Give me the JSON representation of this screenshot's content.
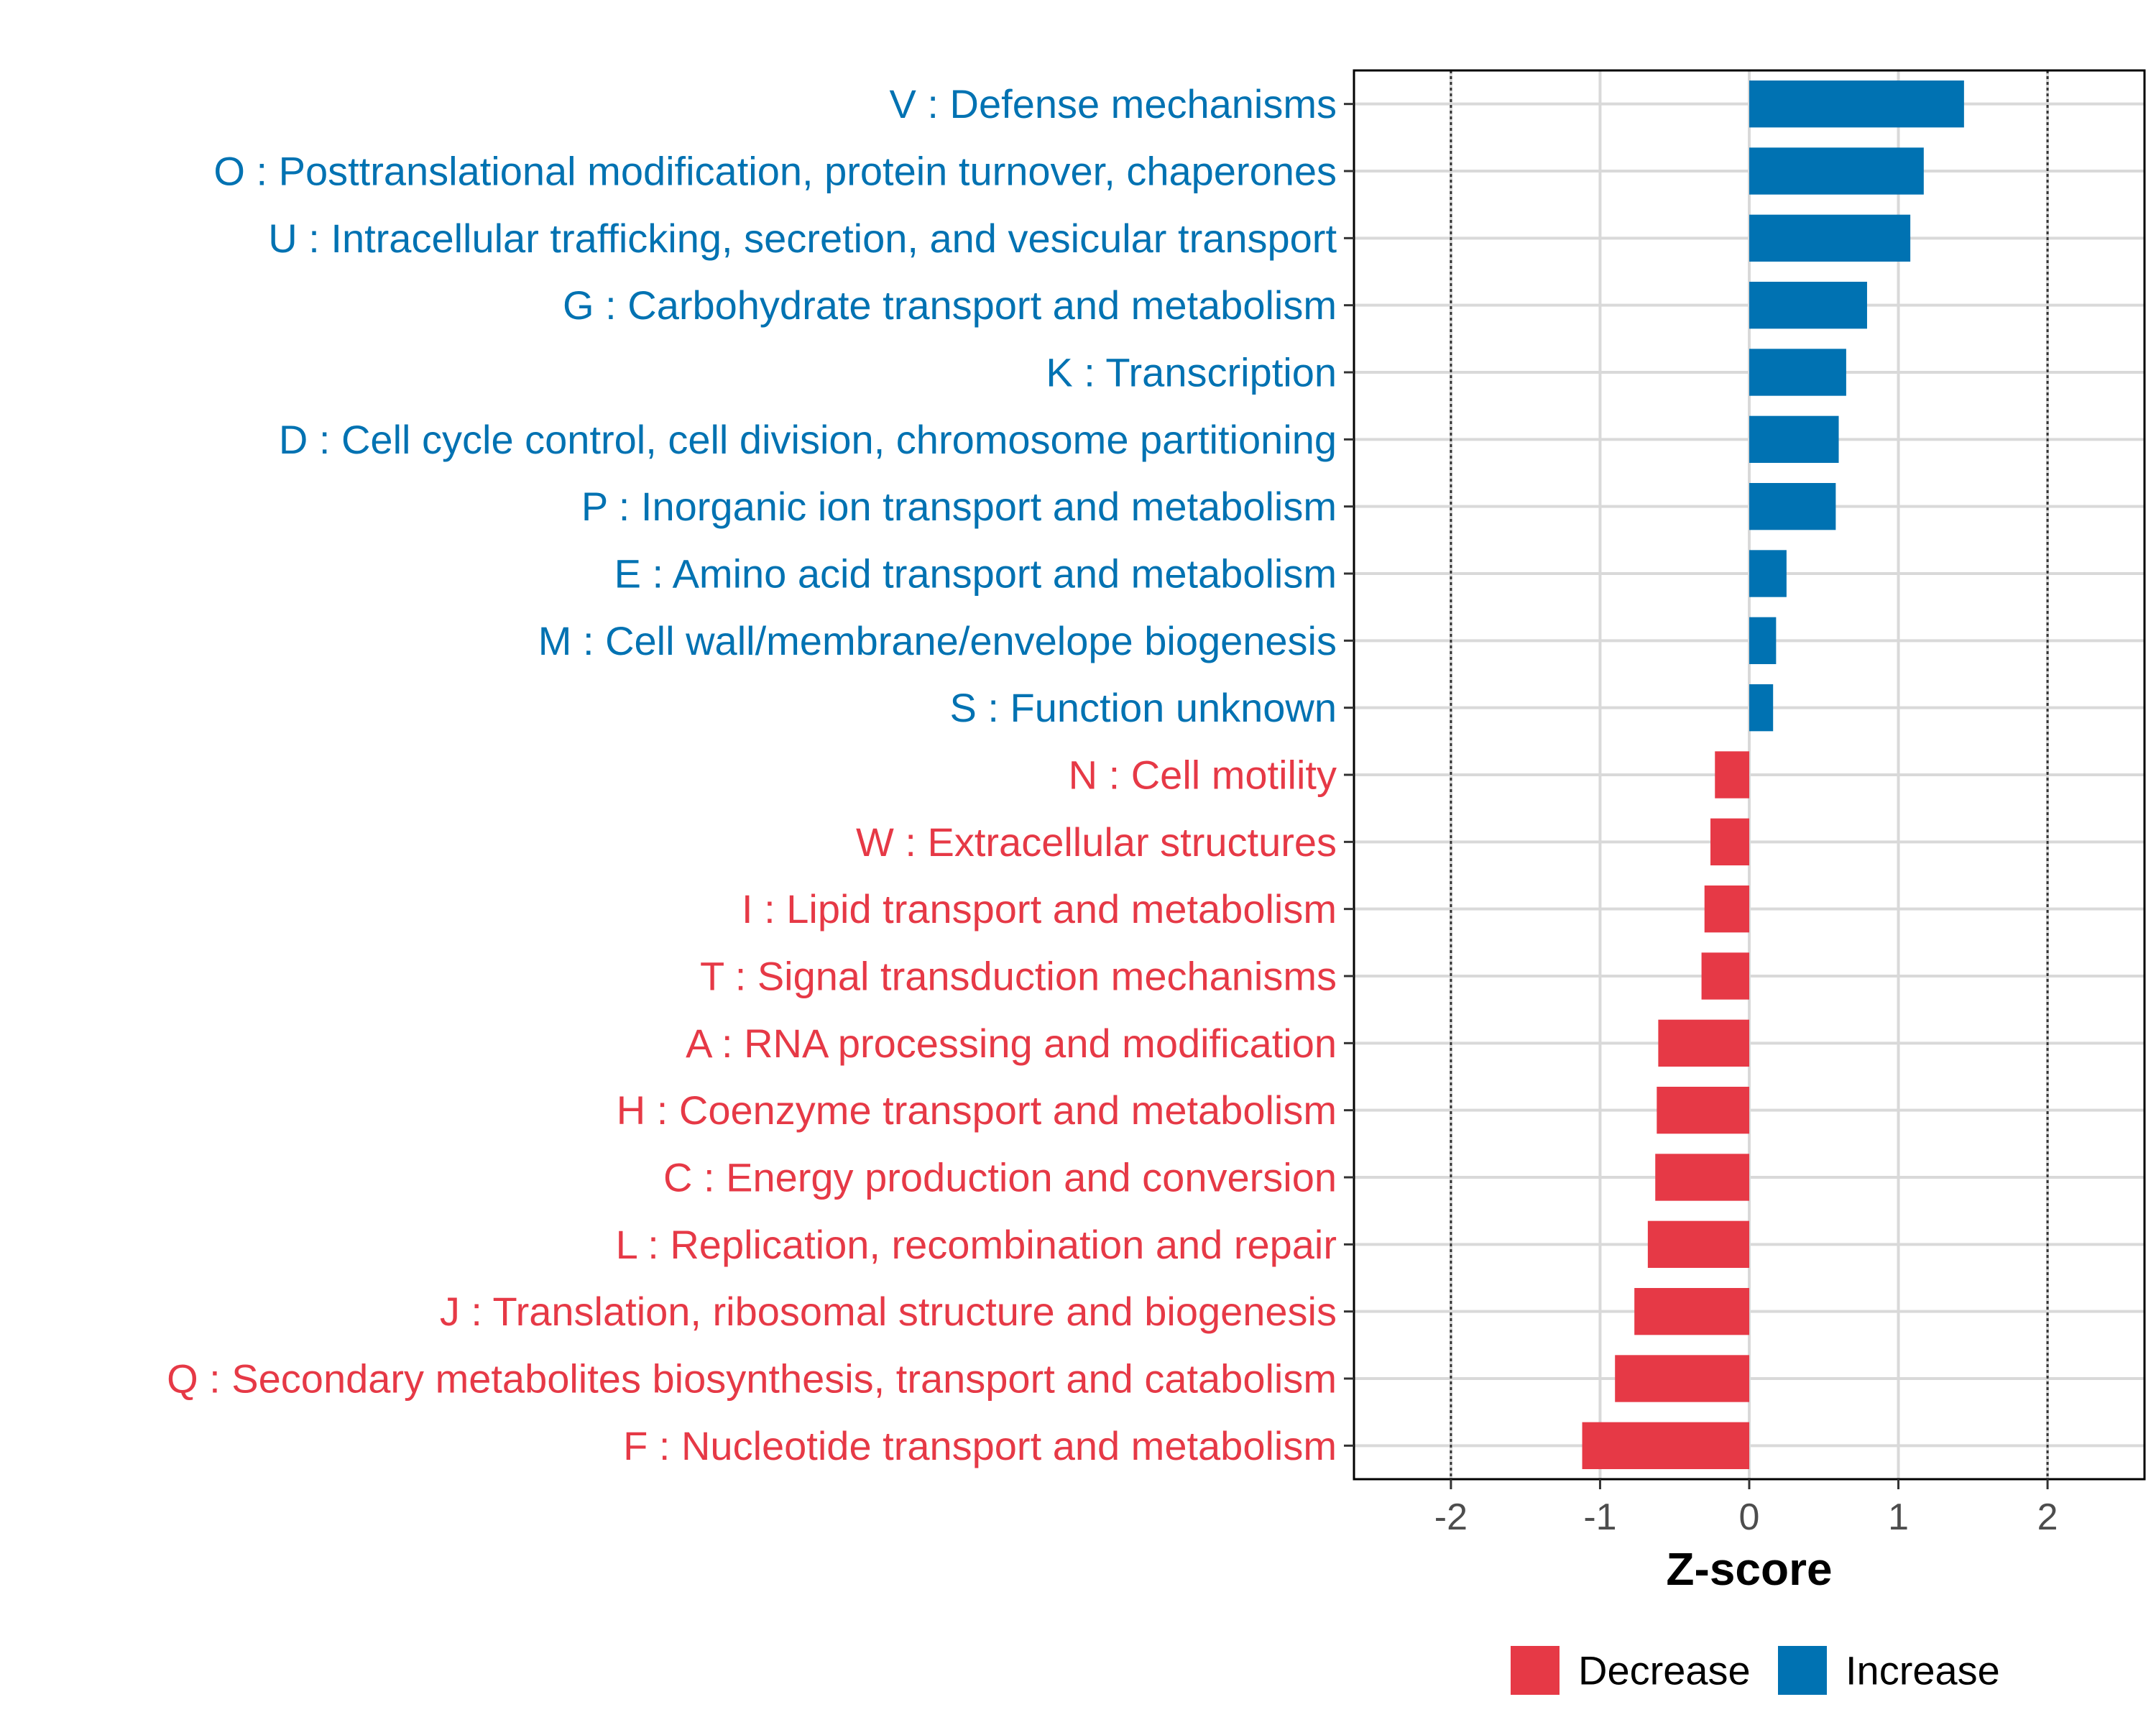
{
  "chart_data": {
    "type": "bar",
    "orientation": "horizontal",
    "xlabel": "Z-score",
    "xlim": [
      -2.65,
      2.65
    ],
    "xticks": [
      -2,
      -1,
      0,
      1,
      2
    ],
    "xtick_labels": [
      "-2",
      "-1",
      "0",
      "1",
      "2"
    ],
    "reference_lines": [
      -2,
      2
    ],
    "colors": {
      "Increase": "#0072b2",
      "Decrease": "#e63946"
    },
    "categories": [
      "V : Defense mechanisms",
      "O : Posttranslational modification, protein turnover, chaperones",
      "U : Intracellular trafficking, secretion, and vesicular transport",
      "G : Carbohydrate transport and metabolism",
      "K : Transcription",
      "D : Cell cycle control, cell division, chromosome partitioning",
      "P : Inorganic ion transport and metabolism",
      "E : Amino acid transport and metabolism",
      "M : Cell wall/membrane/envelope biogenesis",
      "S : Function unknown",
      "N : Cell motility",
      "W : Extracellular structures",
      "I : Lipid transport and metabolism",
      "T : Signal transduction mechanisms",
      "A : RNA processing and modification",
      "H : Coenzyme transport and metabolism",
      "C : Energy production and conversion",
      "L : Replication, recombination and repair",
      "J : Translation, ribosomal structure and biogenesis",
      "Q : Secondary metabolites biosynthesis, transport and catabolism",
      "F : Nucleotide transport and metabolism"
    ],
    "values": [
      1.44,
      1.17,
      1.08,
      0.79,
      0.65,
      0.6,
      0.58,
      0.25,
      0.18,
      0.16,
      -0.23,
      -0.26,
      -0.3,
      -0.32,
      -0.61,
      -0.62,
      -0.63,
      -0.68,
      -0.77,
      -0.9,
      -1.12
    ],
    "groups": [
      "Increase",
      "Increase",
      "Increase",
      "Increase",
      "Increase",
      "Increase",
      "Increase",
      "Increase",
      "Increase",
      "Increase",
      "Decrease",
      "Decrease",
      "Decrease",
      "Decrease",
      "Decrease",
      "Decrease",
      "Decrease",
      "Decrease",
      "Decrease",
      "Decrease",
      "Decrease"
    ],
    "legend": {
      "position": "bottom",
      "entries": [
        {
          "label": "Decrease",
          "color": "#e63946"
        },
        {
          "label": "Increase",
          "color": "#0072b2"
        }
      ]
    }
  }
}
